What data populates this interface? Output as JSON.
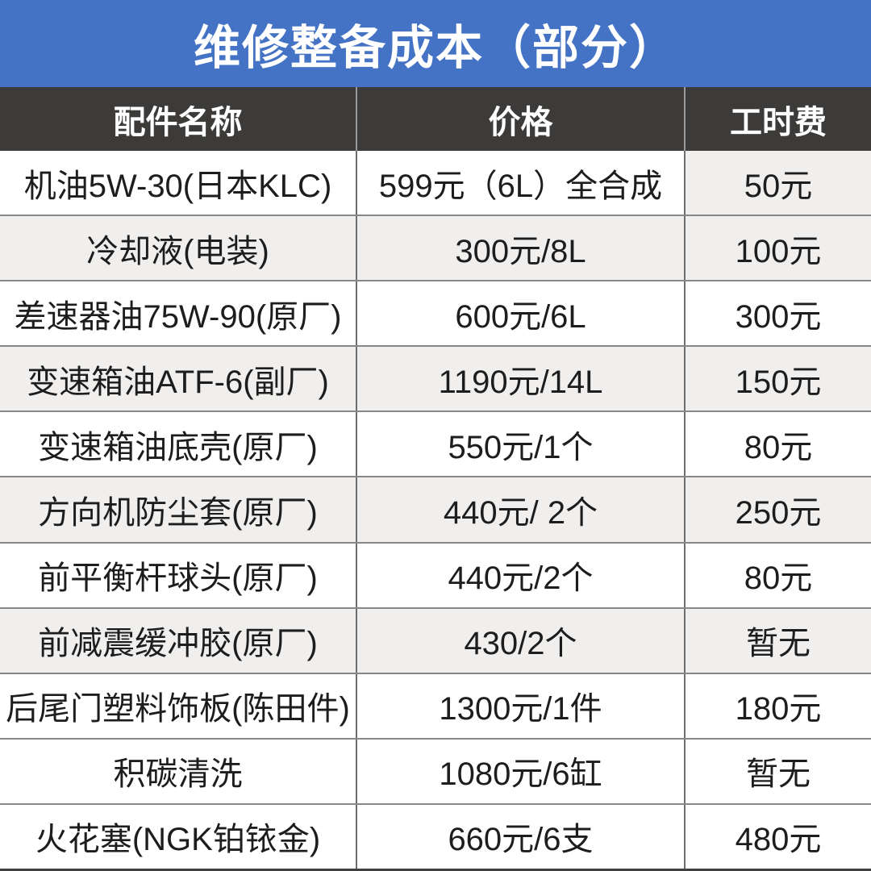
{
  "title": "维修整备成本（部分）",
  "colors": {
    "banner_blue": "#4473c5",
    "header_dark": "#3c3b3a",
    "row_shade_gray": "#f0efee",
    "grid_line": "#6e6e6e",
    "text": "#1d1d1d"
  },
  "table": {
    "headers": [
      "配件名称",
      "价格",
      "工时费"
    ],
    "rows": [
      {
        "name": "机油5W-30(日本KLC)",
        "price": "599元（6L）全合成",
        "labor": "50元"
      },
      {
        "name": "冷却液(电装)",
        "price": "300元/8L",
        "labor": "100元"
      },
      {
        "name": "差速器油75W-90(原厂)",
        "price": "600元/6L",
        "labor": "300元"
      },
      {
        "name": "变速箱油ATF-6(副厂)",
        "price": "1190元/14L",
        "labor": "150元"
      },
      {
        "name": "变速箱油底壳(原厂)",
        "price": "550元/1个",
        "labor": "80元"
      },
      {
        "name": "方向机防尘套(原厂)",
        "price": "440元/ 2个",
        "labor": "250元"
      },
      {
        "name": "前平衡杆球头(原厂)",
        "price": "440元/2个",
        "labor": "80元"
      },
      {
        "name": "前减震缓冲胶(原厂)",
        "price": "430/2个",
        "labor": "暂无"
      },
      {
        "name": "后尾门塑料饰板(陈田件)",
        "price": "1300元/1件",
        "labor": "180元"
      },
      {
        "name": "积碳清洗",
        "price": "1080元/6缸",
        "labor": "暂无"
      },
      {
        "name": "火花塞(NGK铂铱金)",
        "price": "660元/6支",
        "labor": "480元"
      }
    ]
  },
  "chart_data": {
    "type": "table",
    "title": "维修整备成本（部分）",
    "columns": [
      "配件名称",
      "价格",
      "工时费"
    ],
    "rows": [
      [
        "机油5W-30(日本KLC)",
        "599元（6L）全合成",
        "50元"
      ],
      [
        "冷却液(电装)",
        "300元/8L",
        "100元"
      ],
      [
        "差速器油75W-90(原厂)",
        "600元/6L",
        "300元"
      ],
      [
        "变速箱油ATF-6(副厂)",
        "1190元/14L",
        "150元"
      ],
      [
        "变速箱油底壳(原厂)",
        "550元/1个",
        "80元"
      ],
      [
        "方向机防尘套(原厂)",
        "440元/ 2个",
        "250元"
      ],
      [
        "前平衡杆球头(原厂)",
        "440元/2个",
        "80元"
      ],
      [
        "前减震缓冲胶(原厂)",
        "430/2个",
        "暂无"
      ],
      [
        "后尾门塑料饰板(陈田件)",
        "1300元/1件",
        "180元"
      ],
      [
        "积碳清洗",
        "1080元/6缸",
        "暂无"
      ],
      [
        "火花塞(NGK铂铱金)",
        "660元/6支",
        "480元"
      ]
    ],
    "layout_hints": {
      "shaded_rows_indices_0_based": [
        1,
        3,
        5,
        7
      ],
      "extra_shaded_cell": "row 0, column 工时费",
      "header_style": "white bold on dark gray",
      "title_style": "white bold on blue banner"
    }
  }
}
